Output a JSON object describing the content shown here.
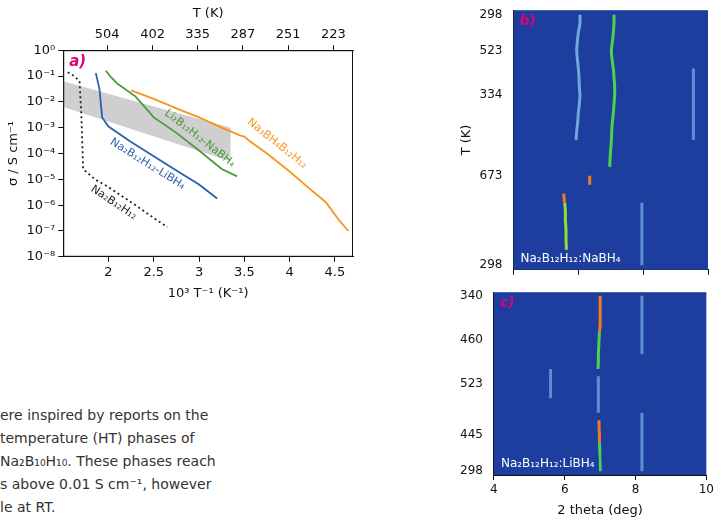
{
  "chart_data": [
    {
      "type": "line",
      "panel_label": "a)",
      "xlabel": "10³ T⁻¹ (K⁻¹)",
      "ylabel": "σ / S cm⁻¹",
      "x2label": "T (K)",
      "log": "y",
      "grid": false,
      "xlim": [
        1.5,
        4.7
      ],
      "xticks": [
        2,
        2.5,
        3,
        3.5,
        4,
        4.5
      ],
      "x2lim": [
        1.5,
        4.7
      ],
      "x2ticks": [
        {
          "value": 1.984,
          "label": "504"
        },
        {
          "value": 2.488,
          "label": "402"
        },
        {
          "value": 2.985,
          "label": "335"
        },
        {
          "value": 3.484,
          "label": "287"
        },
        {
          "value": 3.984,
          "label": "251"
        },
        {
          "value": 4.484,
          "label": "223"
        }
      ],
      "ylim": [
        1e-08,
        1
      ],
      "yticks": [
        {
          "value": 1,
          "label": "10⁰"
        },
        {
          "value": 0.1,
          "label": "10⁻¹"
        },
        {
          "value": 0.01,
          "label": "10⁻²"
        },
        {
          "value": 0.001,
          "label": "10⁻³"
        },
        {
          "value": 0.0001,
          "label": "10⁻⁴"
        },
        {
          "value": 1e-05,
          "label": "10⁻⁵"
        },
        {
          "value": 1e-06,
          "label": "10⁻⁶"
        },
        {
          "value": 1e-07,
          "label": "10⁻⁷"
        },
        {
          "value": 1e-08,
          "label": "10⁻⁸"
        }
      ],
      "series": [
        {
          "name": "Na₃BH₄B₁₂H₁₂",
          "color": "#f7941d",
          "line_style": "solid",
          "x": [
            2.25,
            2.5,
            2.75,
            3.0,
            3.25,
            3.45,
            3.5,
            3.55,
            3.75,
            4.0,
            4.2,
            4.4,
            4.55,
            4.65
          ],
          "values": [
            0.028,
            0.013,
            0.0056,
            0.0025,
            0.001,
            0.0005,
            0.00045,
            0.00032,
            0.0001,
            2e-05,
            5e-06,
            1.3e-06,
            2.5e-07,
            1e-07
          ]
        },
        {
          "name": "Li₂B₁₂H₁₂-NaBH₄",
          "color": "#4a9a3a",
          "line_style": "solid",
          "x": [
            1.97,
            2.03,
            2.1,
            2.3,
            2.5,
            2.75,
            3.0,
            3.25,
            3.42
          ],
          "values": [
            0.16,
            0.089,
            0.05,
            0.016,
            0.0025,
            0.00063,
            0.00013,
            2.5e-05,
            1.3e-05
          ]
        },
        {
          "name": "Na₂B₁₂H₁₂-LiBH₄",
          "color": "#2b5fad",
          "line_style": "solid",
          "x": [
            1.86,
            1.9,
            1.93,
            2.0,
            2.25,
            2.5,
            2.75,
            3.0,
            3.2
          ],
          "values": [
            0.13,
            0.032,
            0.0025,
            0.0011,
            0.00028,
            7.9e-05,
            2.2e-05,
            6.3e-06,
            1.8e-06
          ]
        },
        {
          "name": "Na₂B₁₂H₁₂",
          "color": "#222222",
          "line_style": "dotted",
          "x": [
            1.55,
            1.62,
            1.68,
            1.7,
            1.72,
            1.85,
            2.0,
            2.25,
            2.5,
            2.65
          ],
          "values": [
            0.14,
            0.1,
            0.063,
            0.0032,
            2.5e-05,
            1e-05,
            5e-06,
            1.3e-06,
            3.2e-07,
            1.4e-07
          ]
        },
        {
          "type": "area",
          "color": "#cfcfcf",
          "x": [
            1.5,
            3.35
          ],
          "upper": [
            0.063,
            0.001
          ],
          "lower": [
            0.0063,
            5e-05
          ]
        }
      ]
    },
    {
      "type": "line",
      "orientation": "horizontal",
      "panel_label": "b)",
      "title": "Na₂B₁₂H₁₂:NaBH₄",
      "ylabel": "T (K)",
      "tick_labels": "y",
      "xlim": [
        4,
        10
      ],
      "xticks": [
        4,
        6,
        8,
        10
      ],
      "categories": [
        "298",
        null,
        null,
        null,
        "523",
        null,
        null,
        null,
        null,
        "334",
        null,
        null,
        null,
        null,
        null,
        null,
        null,
        null,
        "673",
        null,
        null,
        null,
        null,
        null,
        null,
        null,
        null,
        null,
        "298"
      ],
      "series": [
        {
          "color": "#6fa8dc",
          "values": [
            6.05,
            6.05,
            6.0,
            5.97,
            5.95,
            5.97,
            6.0,
            6.02,
            6.03,
            6.05,
            6.03,
            6.0,
            5.98,
            5.95,
            5.93,
            null,
            null,
            null,
            null,
            null,
            null,
            null,
            null,
            null,
            null,
            null,
            null,
            null,
            null
          ]
        },
        {
          "color": "#4cd24c",
          "values": [
            7.1,
            7.1,
            7.08,
            7.05,
            7.02,
            7.04,
            7.08,
            7.1,
            7.12,
            7.12,
            7.1,
            7.08,
            7.05,
            7.03,
            7.02,
            7.0,
            6.98,
            6.97,
            null,
            null,
            null,
            null,
            null,
            null,
            null,
            null,
            null,
            null,
            null
          ]
        },
        {
          "color": "#5b8fd0",
          "values": [
            null,
            null,
            null,
            null,
            null,
            null,
            9.55,
            9.55,
            9.55,
            9.55,
            9.55,
            9.55,
            9.55,
            9.55,
            9.55,
            null,
            null,
            null,
            null,
            null,
            null,
            null,
            null,
            null,
            null,
            null,
            null,
            null,
            null
          ]
        },
        {
          "color": "#f07a22",
          "values": [
            null,
            null,
            null,
            null,
            null,
            null,
            null,
            null,
            null,
            null,
            null,
            null,
            null,
            null,
            null,
            null,
            null,
            null,
            6.35,
            6.35,
            null,
            null,
            null,
            null,
            null,
            null,
            null,
            null,
            null
          ]
        },
        {
          "color": "#f07a22",
          "values": [
            null,
            null,
            null,
            null,
            null,
            null,
            null,
            null,
            null,
            null,
            null,
            null,
            null,
            null,
            null,
            null,
            null,
            null,
            null,
            null,
            5.55,
            5.57,
            null,
            null,
            null,
            null,
            null,
            null,
            null
          ]
        },
        {
          "color": "#8fe03a",
          "values": [
            null,
            null,
            null,
            null,
            null,
            null,
            null,
            null,
            null,
            null,
            null,
            null,
            null,
            null,
            null,
            null,
            null,
            null,
            null,
            null,
            null,
            5.58,
            5.6,
            5.6,
            5.62,
            5.62,
            5.63,
            5.63,
            5.65
          ]
        },
        {
          "color": "#5b8fd0",
          "values": [
            null,
            null,
            null,
            null,
            null,
            null,
            null,
            null,
            null,
            null,
            null,
            null,
            null,
            null,
            null,
            null,
            null,
            null,
            null,
            null,
            null,
            7.96,
            7.96,
            7.96,
            7.96,
            7.96,
            7.96,
            7.96,
            7.96
          ]
        }
      ]
    },
    {
      "type": "line",
      "orientation": "horizontal",
      "panel_label": "c)",
      "title": "Na₂B₁₂H₁₂:LiBH₄",
      "xlabel": "2 theta (deg)",
      "xlim": [
        4,
        10
      ],
      "xticks": [
        4,
        6,
        8,
        10
      ],
      "categories": [
        "340",
        null,
        null,
        null,
        null,
        null,
        "460",
        null,
        null,
        null,
        null,
        null,
        "523",
        null,
        null,
        null,
        null,
        null,
        null,
        "445",
        null,
        null,
        null,
        null,
        "298"
      ],
      "series": [
        {
          "color": "#f07a22",
          "values": [
            7.0,
            7.0,
            7.0,
            7.0,
            7.0,
            6.98,
            null,
            null,
            null,
            null,
            null,
            null,
            null,
            null,
            null,
            null,
            null,
            null,
            null,
            null,
            null,
            null,
            null,
            null,
            null
          ]
        },
        {
          "color": "#4cd24c",
          "values": [
            null,
            null,
            null,
            null,
            null,
            6.98,
            6.97,
            6.96,
            6.95,
            6.95,
            6.94,
            null,
            null,
            null,
            null,
            null,
            null,
            null,
            null,
            null,
            null,
            null,
            null,
            null,
            null
          ]
        },
        {
          "color": "#5b8fd0",
          "values": [
            null,
            null,
            null,
            null,
            null,
            null,
            null,
            null,
            null,
            null,
            null,
            6.95,
            6.95,
            6.95,
            6.95,
            6.95,
            6.95,
            null,
            null,
            null,
            null,
            null,
            null,
            null,
            null
          ]
        },
        {
          "color": "#f07a22",
          "values": [
            null,
            null,
            null,
            null,
            null,
            null,
            null,
            null,
            null,
            null,
            null,
            null,
            null,
            null,
            null,
            null,
            null,
            6.97,
            6.97,
            6.98,
            6.98,
            null,
            null,
            null,
            null
          ]
        },
        {
          "color": "#4cd24c",
          "values": [
            null,
            null,
            null,
            null,
            null,
            null,
            null,
            null,
            null,
            null,
            null,
            null,
            null,
            null,
            null,
            null,
            null,
            null,
            null,
            null,
            6.98,
            6.99,
            6.99,
            7.0,
            7.0
          ]
        },
        {
          "color": "#5b8fd0",
          "values": [
            null,
            null,
            null,
            null,
            null,
            null,
            null,
            null,
            null,
            null,
            5.6,
            5.6,
            5.6,
            5.6,
            5.6,
            null,
            null,
            null,
            null,
            null,
            null,
            null,
            null,
            null,
            null
          ]
        },
        {
          "color": "#5b8fd0",
          "values": [
            8.18,
            8.18,
            8.18,
            8.18,
            8.18,
            8.18,
            8.18,
            8.18,
            8.18,
            null,
            null,
            null,
            null,
            null,
            null,
            null,
            8.18,
            8.18,
            8.18,
            8.18,
            8.18,
            8.18,
            8.18,
            8.18,
            8.18
          ]
        }
      ]
    }
  ],
  "text": {
    "lines": [
      "ere inspired by reports on the",
      "temperature (HT) phases of",
      "Na₂B₁₀H₁₀. These phases reach",
      "s above 0.01 S cm⁻¹, however",
      "le at RT."
    ]
  }
}
